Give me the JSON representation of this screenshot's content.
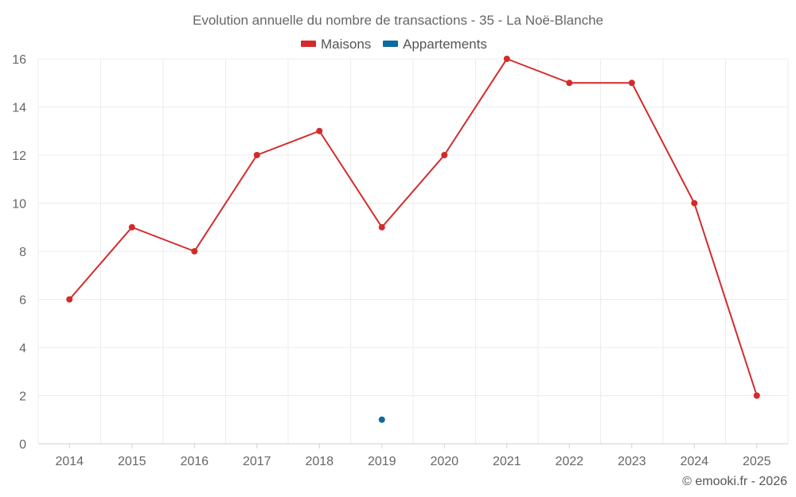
{
  "chart_data": {
    "type": "line",
    "title": "Evolution annuelle du nombre de transactions - 35 - La Noë-Blanche",
    "categories": [
      "2014",
      "2015",
      "2016",
      "2017",
      "2018",
      "2019",
      "2020",
      "2021",
      "2022",
      "2023",
      "2024",
      "2025"
    ],
    "series": [
      {
        "name": "Maisons",
        "color": "#d42a2a",
        "values": [
          6,
          9,
          8,
          12,
          13,
          9,
          12,
          16,
          15,
          15,
          10,
          2
        ]
      },
      {
        "name": "Appartements",
        "color": "#0c6a9e",
        "values": [
          null,
          null,
          null,
          null,
          null,
          1,
          null,
          null,
          null,
          null,
          null,
          null
        ]
      }
    ],
    "ylim": [
      0,
      16
    ],
    "yticks": [
      0,
      2,
      4,
      6,
      8,
      10,
      12,
      14,
      16
    ],
    "grid": true,
    "legend": "top-center",
    "xlabel": "",
    "ylabel": ""
  },
  "credit": "© emooki.fr - 2026"
}
